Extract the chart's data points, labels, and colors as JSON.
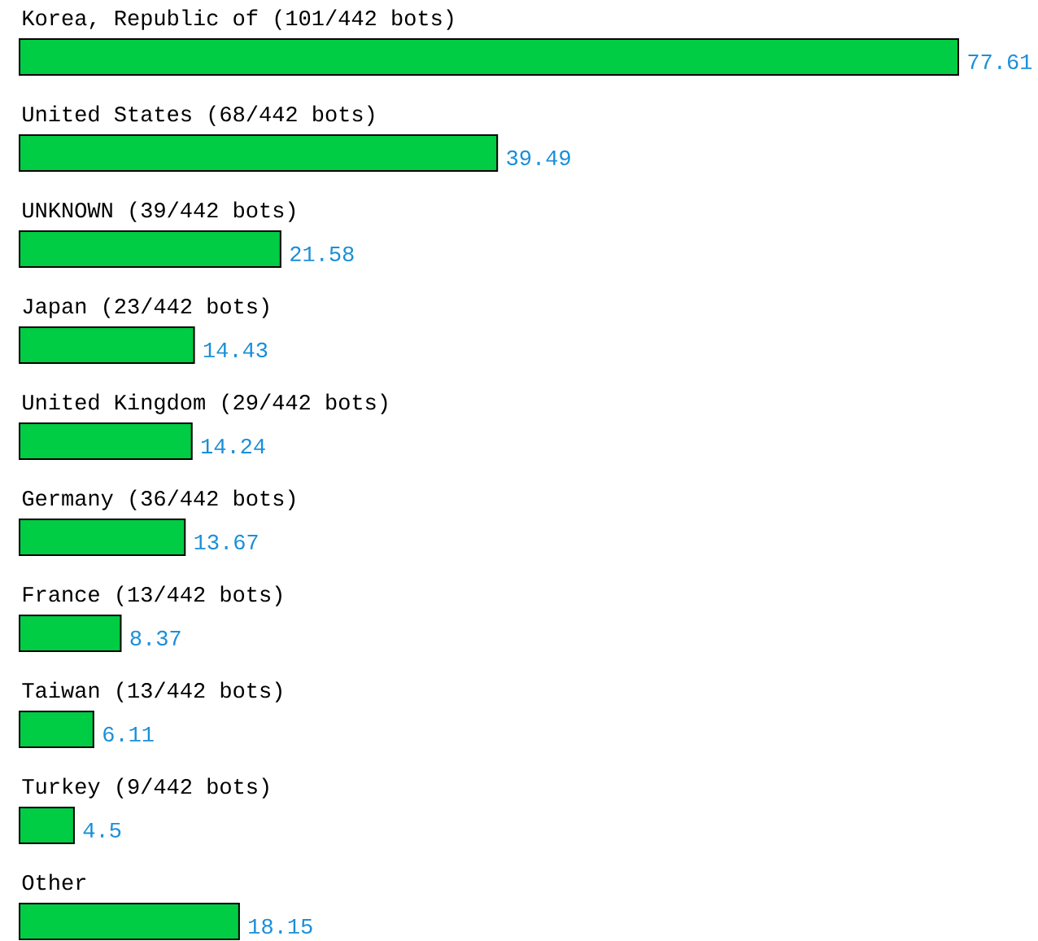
{
  "chart_data": {
    "type": "bar",
    "orientation": "horizontal",
    "categories": [
      "Korea, Republic of (101/442 bots)",
      "United States (68/442 bots)",
      "UNKNOWN (39/442 bots)",
      "Japan (23/442 bots)",
      "United Kingdom (29/442 bots)",
      "Germany (36/442 bots)",
      "France (13/442 bots)",
      "Taiwan (13/442 bots)",
      "Turkey (9/442 bots)",
      "Other"
    ],
    "values": [
      77.61,
      39.49,
      21.58,
      14.43,
      14.24,
      13.67,
      8.37,
      6.11,
      4.5,
      18.15
    ],
    "color": "#00cc44",
    "data_labels": true
  }
}
